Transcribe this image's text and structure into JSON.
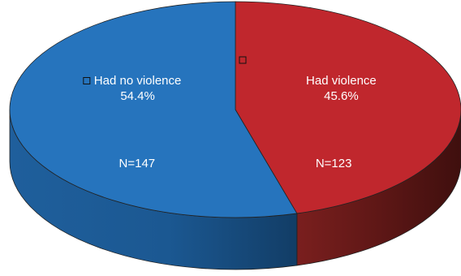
{
  "chart_data": {
    "type": "pie",
    "style": "3d",
    "slices": [
      {
        "label": "Had violence",
        "percent": 45.6,
        "percent_label": "45.6%",
        "count_label": "N=123",
        "color": "#c0272d"
      },
      {
        "label": "Had no violence",
        "percent": 54.4,
        "percent_label": "54.4%",
        "count_label": "N=147",
        "color": "#2674bd"
      }
    ],
    "legend_markers": true
  }
}
